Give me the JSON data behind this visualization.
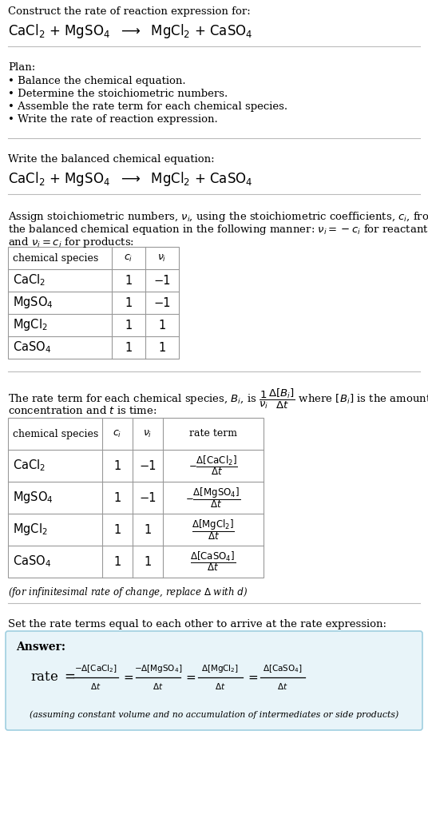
{
  "bg_color": "#ffffff",
  "separator_color": "#bbbbbb",
  "plan_bullets": [
    "• Balance the chemical equation.",
    "• Determine the stoichiometric numbers.",
    "• Assemble the rate term for each chemical species.",
    "• Write the rate of reaction expression."
  ],
  "table1_data": [
    [
      "CaCl₂",
      "1",
      "−1"
    ],
    [
      "MgSO₄",
      "1",
      "−1"
    ],
    [
      "MgCl₂",
      "1",
      "1"
    ],
    [
      "CaSO₄",
      "1",
      "1"
    ]
  ],
  "table2_data": [
    [
      "CaCl₂",
      "1",
      "−1"
    ],
    [
      "MgSO₄",
      "1",
      "−1"
    ],
    [
      "MgCl₂",
      "1",
      "1"
    ],
    [
      "CaSO₄",
      "1",
      "1"
    ]
  ],
  "answer_bg": "#e8f4f9",
  "answer_border": "#a0cfe0"
}
